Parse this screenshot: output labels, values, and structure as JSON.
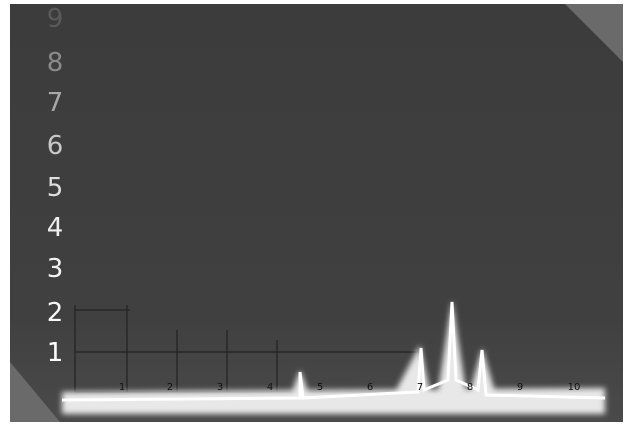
{
  "scale": {
    "vertical": [
      "9",
      "8",
      "7",
      "6",
      "5",
      "4",
      "3",
      "2",
      "1"
    ],
    "horizontal": [
      "1",
      "2",
      "3",
      "4",
      "5",
      "6",
      "7",
      "8",
      "9",
      "10"
    ]
  }
}
